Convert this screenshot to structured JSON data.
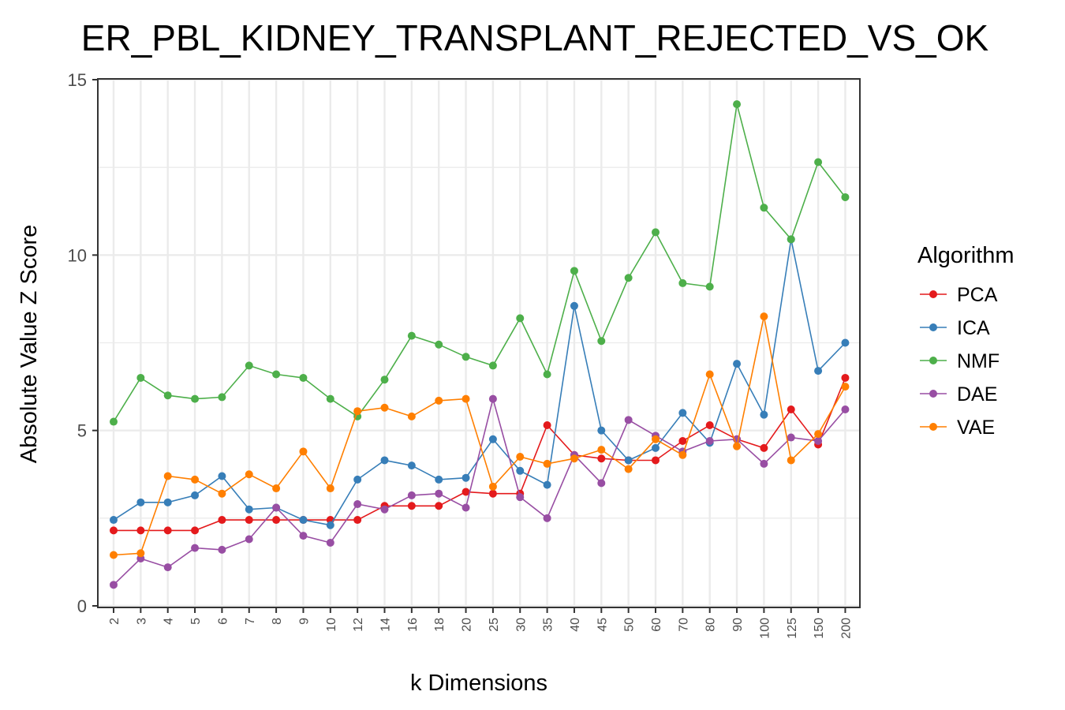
{
  "chart_data": {
    "type": "line",
    "title": "ER_PBL_KIDNEY_TRANSPLANT_REJECTED_VS_OK",
    "xlabel": "k Dimensions",
    "ylabel": "Absolute Value Z Score",
    "ylim": [
      0,
      15
    ],
    "yticks": [
      0,
      5,
      10,
      15
    ],
    "grid": true,
    "legend_title": "Algorithm",
    "legend_position": "right",
    "categories": [
      "2",
      "3",
      "4",
      "5",
      "6",
      "7",
      "8",
      "9",
      "10",
      "12",
      "14",
      "16",
      "18",
      "20",
      "25",
      "30",
      "35",
      "40",
      "45",
      "50",
      "60",
      "70",
      "80",
      "90",
      "100",
      "125",
      "150",
      "200"
    ],
    "series": [
      {
        "name": "PCA",
        "color": "#e41a1c",
        "values": [
          2.15,
          2.15,
          2.15,
          2.15,
          2.45,
          2.45,
          2.45,
          2.45,
          2.45,
          2.45,
          2.85,
          2.85,
          2.85,
          3.25,
          3.2,
          3.2,
          5.15,
          4.3,
          4.2,
          4.15,
          4.15,
          4.7,
          5.15,
          4.75,
          4.5,
          5.6,
          4.6,
          6.5
        ]
      },
      {
        "name": "ICA",
        "color": "#377eb8",
        "values": [
          2.45,
          2.95,
          2.95,
          3.15,
          3.7,
          2.75,
          2.8,
          2.45,
          2.3,
          3.6,
          4.15,
          4.0,
          3.6,
          3.65,
          4.75,
          3.85,
          3.45,
          8.55,
          5.0,
          4.15,
          4.5,
          5.5,
          4.65,
          6.9,
          5.45,
          10.45,
          6.7,
          7.5
        ]
      },
      {
        "name": "NMF",
        "color": "#4daf4a",
        "values": [
          5.25,
          6.5,
          6.0,
          5.9,
          5.95,
          6.85,
          6.6,
          6.5,
          5.9,
          5.4,
          6.45,
          7.7,
          7.45,
          7.1,
          6.85,
          8.2,
          6.6,
          9.55,
          7.55,
          9.35,
          10.65,
          9.2,
          9.1,
          14.3,
          11.35,
          10.45,
          12.65,
          11.65
        ]
      },
      {
        "name": "DAE",
        "color": "#984ea3",
        "values": [
          0.6,
          1.35,
          1.1,
          1.65,
          1.6,
          1.9,
          2.8,
          2.0,
          1.8,
          2.9,
          2.75,
          3.15,
          3.2,
          2.8,
          5.9,
          3.1,
          2.5,
          4.3,
          3.5,
          5.3,
          4.85,
          4.4,
          4.7,
          4.75,
          4.05,
          4.8,
          4.7,
          5.6
        ]
      },
      {
        "name": "VAE",
        "color": "#ff7f00",
        "values": [
          1.45,
          1.5,
          3.7,
          3.6,
          3.2,
          3.75,
          3.35,
          4.4,
          3.35,
          5.55,
          5.65,
          5.4,
          5.85,
          5.9,
          3.4,
          4.25,
          4.05,
          4.2,
          4.45,
          3.9,
          4.75,
          4.3,
          6.6,
          4.55,
          8.25,
          4.15,
          4.9,
          6.25
        ]
      }
    ]
  }
}
